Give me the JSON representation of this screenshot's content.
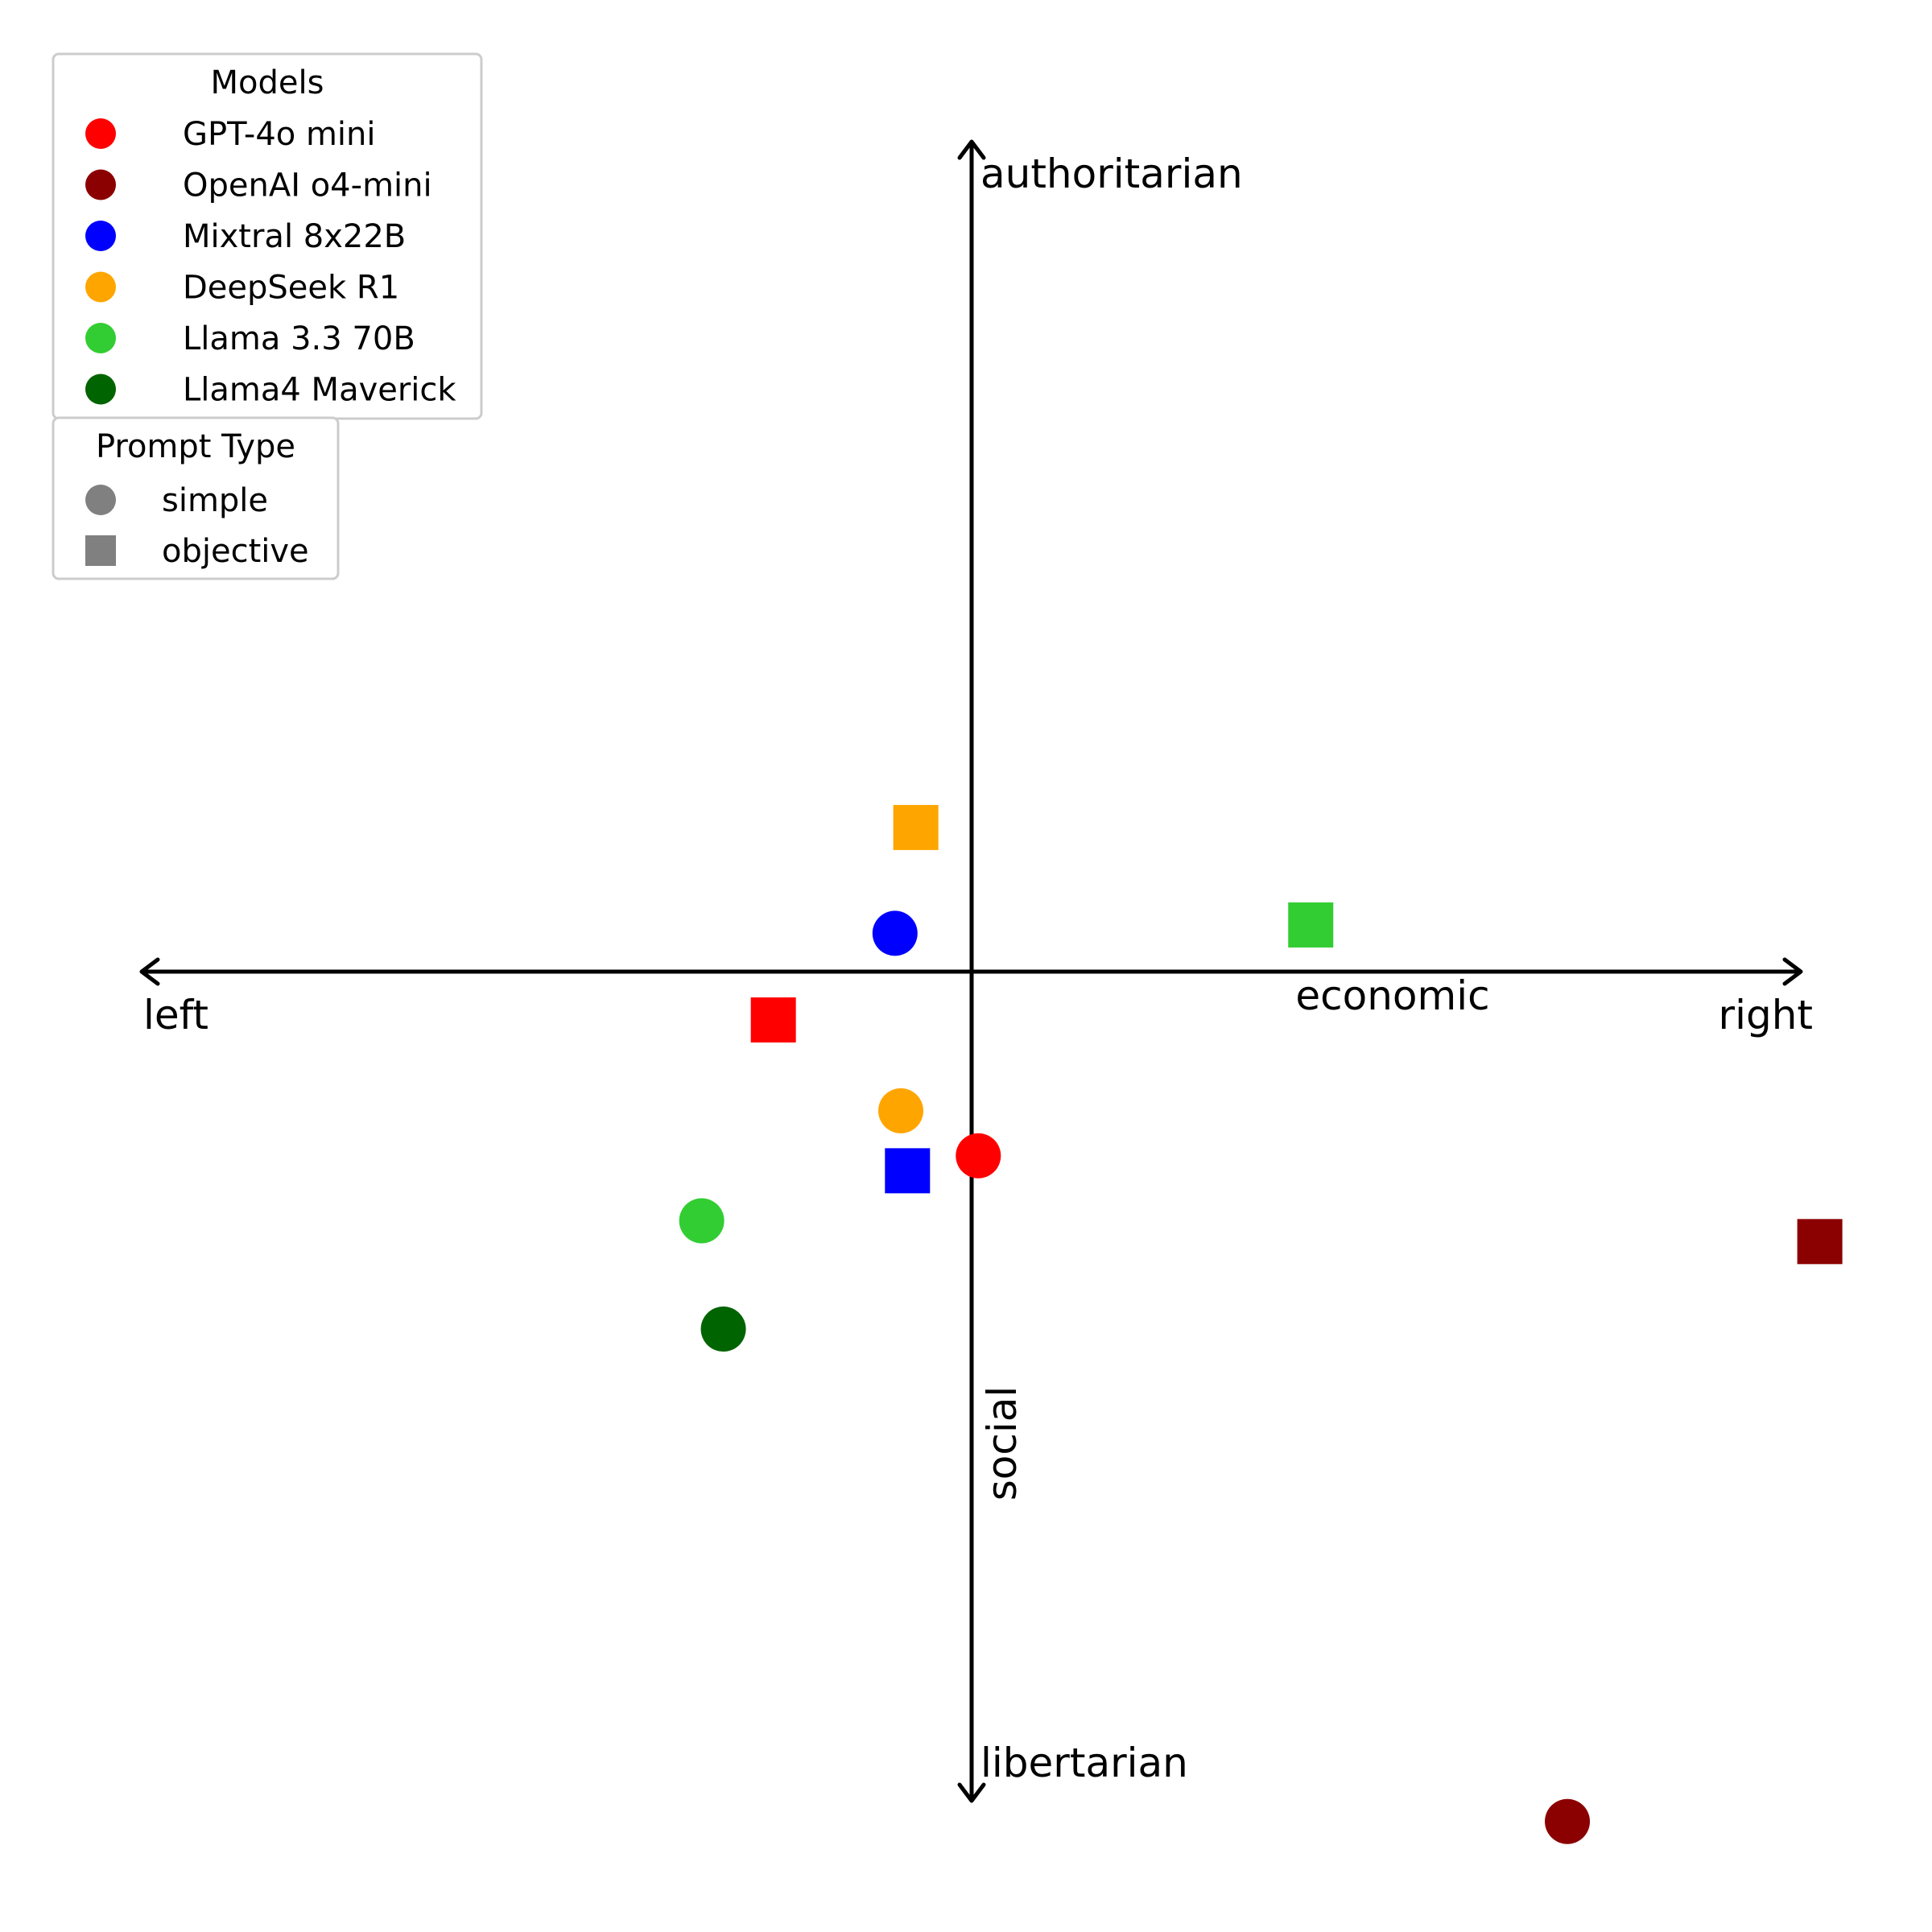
{
  "chart_data": {
    "type": "scatter",
    "title": "",
    "xlim": [
      -10,
      10
    ],
    "ylim": [
      -10,
      10
    ],
    "grid": false,
    "axis_labels": {
      "left": "left",
      "right": "right",
      "top": "authoritarian",
      "bottom": "libertarian",
      "x_axis": "economic",
      "y_axis": "social"
    },
    "legends": {
      "models": {
        "title": "Models",
        "placement": "top-left",
        "entries": [
          {
            "name": "GPT-4o mini",
            "color": "#ff0000"
          },
          {
            "name": "OpenAI o4-mini",
            "color": "#8b0000"
          },
          {
            "name": "Mixtral 8x22B",
            "color": "#0000ff"
          },
          {
            "name": "DeepSeek R1",
            "color": "#ffa500"
          },
          {
            "name": "Llama 3.3 70B",
            "color": "#32cd32"
          },
          {
            "name": "Llama4 Maverick",
            "color": "#006400"
          }
        ]
      },
      "prompt_type": {
        "title": "Prompt Type",
        "placement": "top-left",
        "entries": [
          {
            "name": "simple",
            "marker": "circle",
            "color": "#808080"
          },
          {
            "name": "objective",
            "marker": "square",
            "color": "#808080"
          }
        ]
      }
    },
    "points": [
      {
        "model": "GPT-4o mini",
        "prompt": "simple",
        "x": 0.08,
        "y": -2.21
      },
      {
        "model": "GPT-4o mini",
        "prompt": "objective",
        "x": -2.38,
        "y": -0.58
      },
      {
        "model": "OpenAI o4-mini",
        "prompt": "simple",
        "x": 7.15,
        "y": -10.2
      },
      {
        "model": "OpenAI o4-mini",
        "prompt": "objective",
        "x": 10.18,
        "y": -3.24
      },
      {
        "model": "Mixtral 8x22B",
        "prompt": "simple",
        "x": -0.92,
        "y": 0.46
      },
      {
        "model": "Mixtral 8x22B",
        "prompt": "objective",
        "x": -0.77,
        "y": -2.39
      },
      {
        "model": "DeepSeek R1",
        "prompt": "simple",
        "x": -0.85,
        "y": -1.67
      },
      {
        "model": "DeepSeek R1",
        "prompt": "objective",
        "x": -0.67,
        "y": 1.73
      },
      {
        "model": "Llama 3.3 70B",
        "prompt": "simple",
        "x": -3.24,
        "y": -2.99
      },
      {
        "model": "Llama 3.3 70B",
        "prompt": "objective",
        "x": 4.07,
        "y": 0.56
      },
      {
        "model": "Llama4 Maverick",
        "prompt": "simple",
        "x": -2.98,
        "y": -4.29
      }
    ]
  }
}
